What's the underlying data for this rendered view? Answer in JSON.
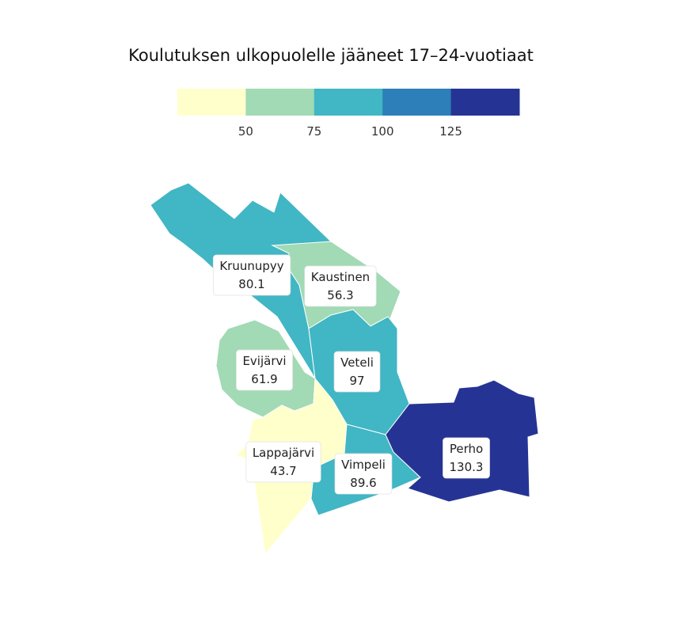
{
  "chart_data": {
    "type": "choropleth",
    "title": "Koulutuksen ulkopuolelle jääneet 17–24-vuotiaat",
    "legend": {
      "placement": "top",
      "breaks": [
        50,
        75,
        100,
        125
      ],
      "tick_labels": [
        "50",
        "75",
        "100",
        "125"
      ],
      "colors": [
        "#ffffcc",
        "#a1dab4",
        "#41b6c4",
        "#2c7fb8",
        "#253494"
      ]
    },
    "regions": [
      {
        "id": "kruunupyy",
        "name": "Kruunupyy",
        "value": 80.1,
        "value_label": "80.1"
      },
      {
        "id": "kaustinen",
        "name": "Kaustinen",
        "value": 56.3,
        "value_label": "56.3"
      },
      {
        "id": "evijarvi",
        "name": "Evijärvi",
        "value": 61.9,
        "value_label": "61.9"
      },
      {
        "id": "veteli",
        "name": "Veteli",
        "value": 97,
        "value_label": "97"
      },
      {
        "id": "lappajarvi",
        "name": "Lappajärvi",
        "value": 43.7,
        "value_label": "43.7"
      },
      {
        "id": "vimpeli",
        "name": "Vimpeli",
        "value": 89.6,
        "value_label": "89.6"
      },
      {
        "id": "perho",
        "name": "Perho",
        "value": 130.3,
        "value_label": "130.3"
      }
    ]
  }
}
